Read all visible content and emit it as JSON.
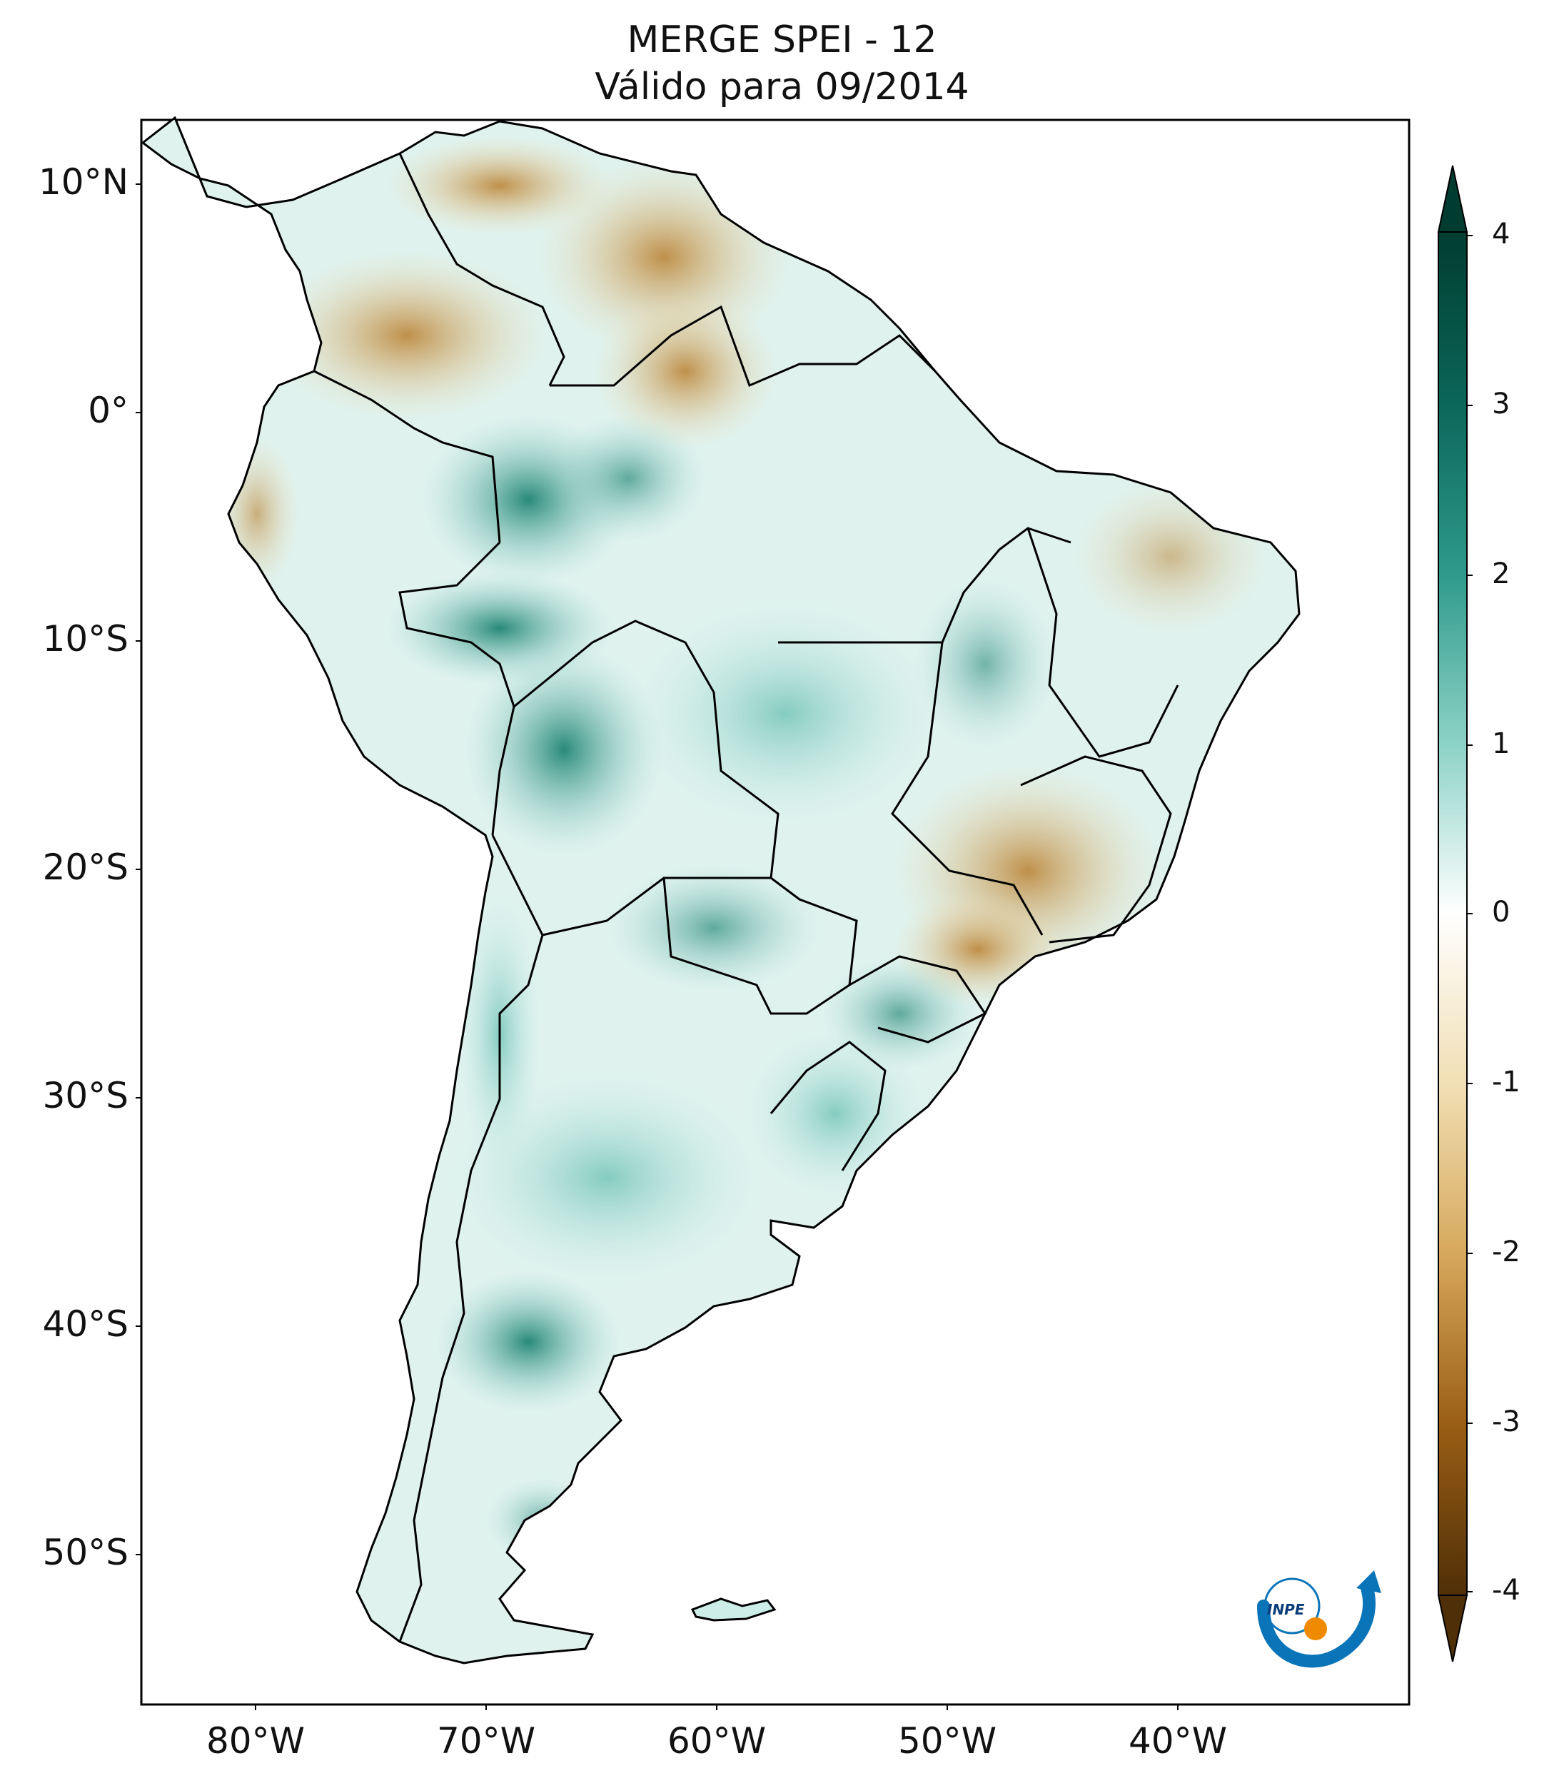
{
  "title": {
    "line1": "MERGE   SPEI - 12",
    "line2": "Válido para 09/2014"
  },
  "map": {
    "lat_labels": [
      "10°N",
      "0°",
      "10°S",
      "20°S",
      "30°S",
      "40°S",
      "50°S"
    ],
    "lon_labels": [
      "80°W",
      "70°W",
      "60°W",
      "50°W",
      "40°W"
    ],
    "extent": {
      "lon": [
        -85,
        -30
      ],
      "lat": [
        -57,
        12.5
      ]
    }
  },
  "colorbar": {
    "ticks": [
      "4",
      "3",
      "2",
      "1",
      "0",
      "-1",
      "-2",
      "-3",
      "-4"
    ],
    "colors": {
      "wet_max": "#003d30",
      "wet_mid": "#2e9a8b",
      "wet_low": "#b8e3dc",
      "neutral": "#ffffff",
      "dry_low": "#f1dfb4",
      "dry_mid": "#c8893a",
      "dry_max": "#4f2f07"
    }
  },
  "logo": {
    "text": "INPE",
    "color_primary": "#0a74b8",
    "color_accent": "#f08a00"
  },
  "colors": {
    "land_wet": "#8fd1c7",
    "land_dry": "#e6c48a",
    "border": "#000000"
  }
}
